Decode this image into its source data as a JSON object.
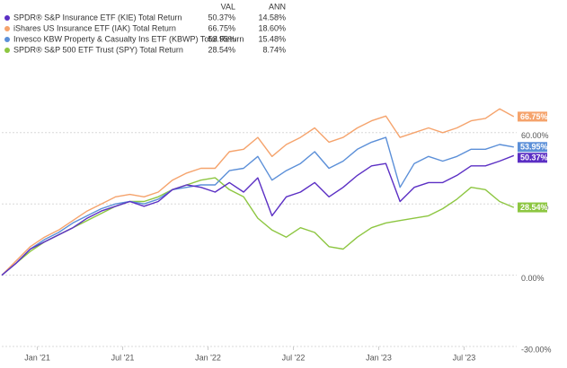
{
  "chart_data": {
    "type": "line",
    "legend_headers": [
      "VAL",
      "ANN"
    ],
    "x": [
      -2.5,
      -1.5,
      -0.5,
      0.5,
      1.5,
      2.5,
      3.5,
      4.5,
      5.5,
      6.5,
      7.5,
      8.5,
      9.5,
      10.5,
      11.5,
      12.5,
      13.5,
      14.5,
      15.5,
      16.5,
      17.5,
      18.5,
      19.5,
      20.5,
      21.5,
      22.5,
      23.5,
      24.5,
      25.5,
      26.5,
      27.5,
      28.5,
      29.5,
      30.5,
      31.5,
      32.5,
      33.5
    ],
    "xlim": [
      -2.5,
      33.7
    ],
    "xticks": [
      {
        "value": 0,
        "label": "Jan '21"
      },
      {
        "value": 6,
        "label": "Jul '21"
      },
      {
        "value": 12,
        "label": "Jan '22"
      },
      {
        "value": 18,
        "label": "Jul '22"
      },
      {
        "value": 24,
        "label": "Jan '23"
      },
      {
        "value": 30,
        "label": "Jul '23"
      }
    ],
    "ylim": [
      -30,
      87.5
    ],
    "yticks": [
      {
        "value": 60,
        "label": "60.00%"
      },
      {
        "value": 30,
        "label": "30.00%"
      },
      {
        "value": 0,
        "label": "0.00%"
      },
      {
        "value": -30,
        "label": "-30.00%"
      }
    ],
    "grid": true,
    "series": [
      {
        "name": "SPDR® S&P Insurance ETF (KIE) Total Return",
        "color": "#5b2fc4",
        "val": 50.37,
        "val_label": "50.37%",
        "ann": 14.58,
        "ann_label": "14.58%",
        "values": [
          0,
          5,
          11,
          14,
          17,
          20,
          24,
          27,
          29,
          31,
          29,
          31,
          36,
          38,
          37,
          35,
          39,
          35,
          41,
          25,
          33,
          35,
          39,
          33,
          37,
          42,
          46,
          47,
          31,
          37,
          39,
          39,
          42,
          46,
          46,
          48,
          50.37
        ]
      },
      {
        "name": "iShares US Insurance ETF (IAK) Total Return",
        "color": "#f5a36c",
        "val": 66.75,
        "val_label": "66.75%",
        "ann": 18.6,
        "ann_label": "18.60%",
        "values": [
          0,
          6,
          12,
          16,
          19,
          23,
          27,
          30,
          33,
          34,
          33,
          35,
          40,
          43,
          45,
          45,
          52,
          53,
          58,
          50,
          55,
          58,
          62,
          56,
          58,
          62,
          65,
          67,
          58,
          60,
          62,
          60,
          62,
          65,
          66,
          70,
          66.75
        ]
      },
      {
        "name": "Invesco KBW Property & Casualty Ins ETF (KBWP) Total Return",
        "color": "#5b8fd8",
        "val": 53.95,
        "val_label": "53.95%",
        "ann": 15.48,
        "ann_label": "15.48%",
        "values": [
          0,
          5,
          11,
          15,
          18,
          22,
          25,
          28,
          30,
          31,
          30,
          32,
          36,
          37,
          38,
          38,
          44,
          45,
          50,
          40,
          44,
          47,
          52,
          45,
          48,
          53,
          56,
          58,
          37,
          47,
          50,
          48,
          50,
          53,
          53,
          55,
          53.95
        ]
      },
      {
        "name": "SPDR® S&P 500 ETF Trust (SPY) Total Return",
        "color": "#8dc641",
        "val": 28.54,
        "val_label": "28.54%",
        "ann": 8.74,
        "ann_label": "8.74%",
        "values": [
          0,
          5,
          10,
          14,
          17,
          20,
          23,
          26,
          29,
          31,
          31,
          33,
          36,
          38,
          40,
          41,
          36,
          33,
          24,
          19,
          16,
          20,
          18,
          12,
          11,
          16,
          20,
          22,
          23,
          24,
          25,
          28,
          32,
          37,
          36,
          31,
          28.54
        ]
      }
    ]
  }
}
